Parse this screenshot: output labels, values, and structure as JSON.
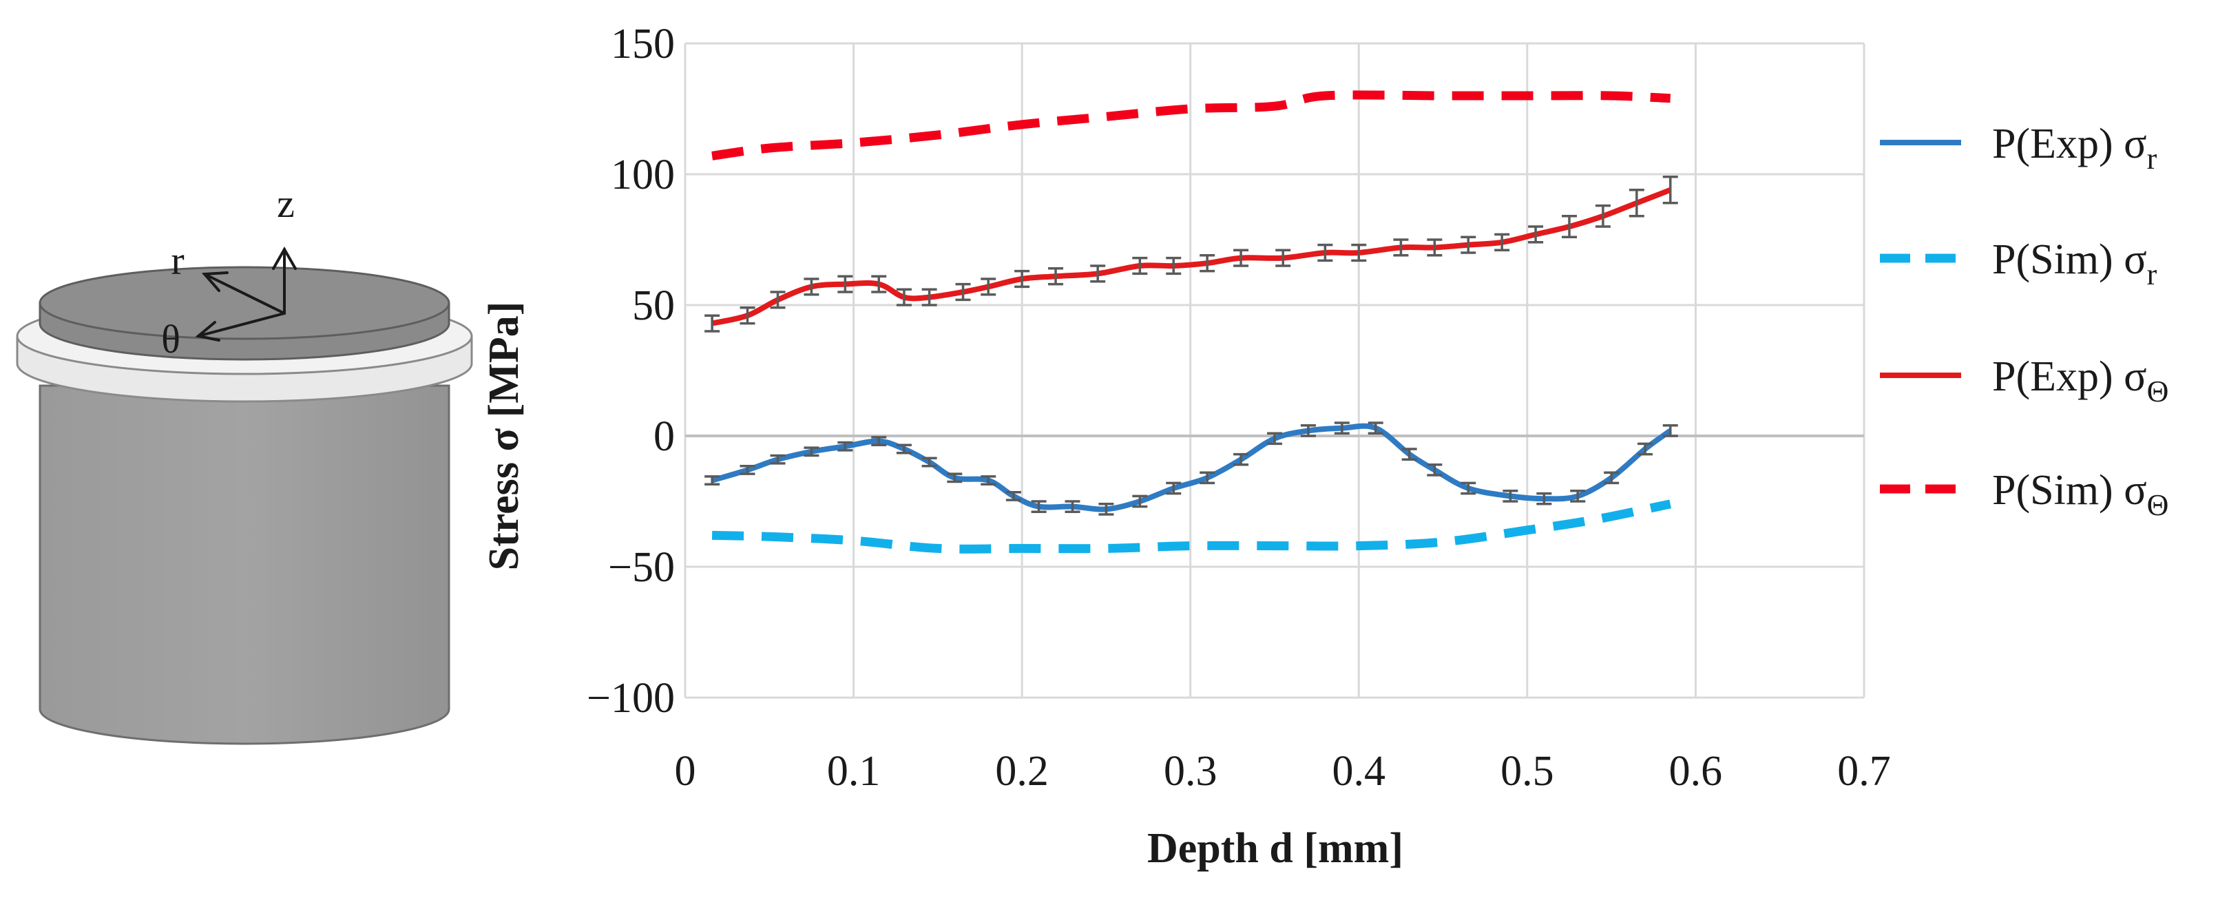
{
  "colors": {
    "exp_r": "#2E7BC4",
    "sim_r": "#12B0EA",
    "exp_theta": "#E31A1C",
    "sim_theta": "#F2001A",
    "grid": "#D9D9D9",
    "errorbar": "#5a5a5a",
    "cylinder_top": "#8C8C8C",
    "cylinder_body": "#999999",
    "ring": "#E6E6E6"
  },
  "specimen": {
    "axis_labels": {
      "z": "z",
      "r": "r",
      "theta": "θ"
    }
  },
  "chart_data": {
    "type": "line",
    "xlabel": "Depth d [mm]",
    "ylabel": "Stress σ [MPa]",
    "xlim": [
      0,
      0.7
    ],
    "ylim": [
      -100,
      150
    ],
    "x_ticks": [
      0,
      0.1,
      0.2,
      0.3,
      0.4,
      0.5,
      0.6,
      0.7
    ],
    "y_ticks": [
      -100,
      -50,
      0,
      50,
      100,
      150
    ],
    "x_tick_labels": [
      "0",
      "0.1",
      "0.2",
      "0.3",
      "0.4",
      "0.5",
      "0.6",
      "0.7"
    ],
    "y_tick_labels": [
      "−100",
      "−50",
      "0",
      "50",
      "100",
      "150"
    ],
    "grid": true,
    "legend_position": "right",
    "series": [
      {
        "name": "P(Exp) σr",
        "label_main": "P(Exp) σ",
        "label_sub": "r",
        "style": "solid",
        "color_key": "exp_r",
        "error_bars": true,
        "x": [
          0.016,
          0.037,
          0.055,
          0.075,
          0.095,
          0.115,
          0.13,
          0.145,
          0.16,
          0.18,
          0.195,
          0.21,
          0.23,
          0.25,
          0.27,
          0.29,
          0.31,
          0.33,
          0.35,
          0.37,
          0.39,
          0.41,
          0.43,
          0.445,
          0.465,
          0.49,
          0.51,
          0.53,
          0.55,
          0.57,
          0.585
        ],
        "y": [
          -17,
          -13,
          -9,
          -6,
          -4,
          -2,
          -5,
          -10,
          -16,
          -17,
          -23,
          -27,
          -27,
          -28,
          -25,
          -20,
          -16,
          -9,
          -1,
          2,
          3,
          3,
          -7,
          -13,
          -20,
          -23,
          -24,
          -23,
          -16,
          -5,
          2
        ],
        "err": [
          1.5,
          1.5,
          1.5,
          1.5,
          1.5,
          1.5,
          1.5,
          1.5,
          1.5,
          1.5,
          1.5,
          2,
          2,
          2,
          2,
          2,
          2,
          2,
          2,
          2,
          2,
          2,
          2,
          2,
          2,
          2,
          2,
          2,
          2,
          2,
          2
        ]
      },
      {
        "name": "P(Sim) σr",
        "label_main": "P(Sim) σ",
        "label_sub": "r",
        "style": "dashed",
        "color_key": "sim_r",
        "error_bars": false,
        "x": [
          0.016,
          0.05,
          0.1,
          0.15,
          0.2,
          0.25,
          0.3,
          0.35,
          0.4,
          0.45,
          0.5,
          0.54,
          0.585
        ],
        "y": [
          -38,
          -38.5,
          -40,
          -43,
          -43,
          -43,
          -42,
          -42,
          -42,
          -40.5,
          -36,
          -32,
          -26
        ]
      },
      {
        "name": "P(Exp) σΘ",
        "label_main": "P(Exp) σ",
        "label_sub": "Θ",
        "style": "solid",
        "color_key": "exp_theta",
        "error_bars": true,
        "x": [
          0.016,
          0.037,
          0.055,
          0.075,
          0.095,
          0.115,
          0.13,
          0.145,
          0.165,
          0.18,
          0.2,
          0.22,
          0.245,
          0.27,
          0.29,
          0.31,
          0.33,
          0.355,
          0.38,
          0.4,
          0.425,
          0.445,
          0.465,
          0.485,
          0.505,
          0.525,
          0.545,
          0.565,
          0.585
        ],
        "y": [
          43,
          46,
          52,
          57,
          58,
          58,
          53,
          53,
          55,
          57,
          60,
          61,
          62,
          65,
          65,
          66,
          68,
          68,
          70,
          70,
          72,
          72,
          73,
          74,
          77,
          80,
          84,
          89,
          94
        ],
        "err": [
          3,
          3,
          3,
          3,
          3,
          3,
          3,
          3,
          3,
          3,
          3,
          3,
          3,
          3,
          3,
          3,
          3,
          3,
          3,
          3,
          3,
          3,
          3,
          3,
          3,
          4,
          4,
          5,
          5
        ]
      },
      {
        "name": "P(Sim) σΘ",
        "label_main": "P(Sim) σ",
        "label_sub": "Θ",
        "style": "dashed",
        "color_key": "sim_theta",
        "error_bars": false,
        "x": [
          0.016,
          0.05,
          0.1,
          0.15,
          0.2,
          0.25,
          0.3,
          0.35,
          0.38,
          0.45,
          0.5,
          0.55,
          0.585
        ],
        "y": [
          107,
          110,
          112,
          115,
          119,
          122,
          125,
          126,
          130,
          130,
          130,
          130,
          129
        ]
      }
    ]
  }
}
